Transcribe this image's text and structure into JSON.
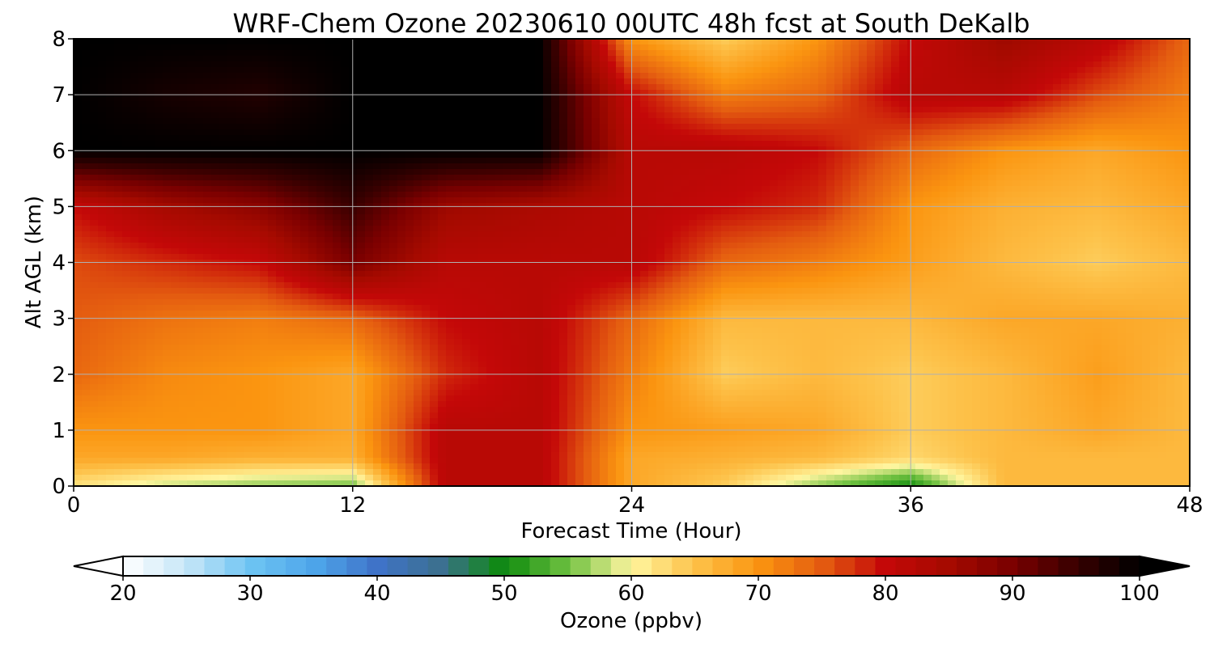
{
  "chart_data": {
    "type": "heatmap",
    "title": "WRF-Chem Ozone  20230610 00UTC 48h fcst at South DeKalb",
    "xlabel": "Forecast Time (Hour)",
    "ylabel": "Alt AGL (km)",
    "xlim": [
      0,
      48
    ],
    "ylim": [
      0,
      8
    ],
    "xticks": [
      0,
      12,
      24,
      36,
      48
    ],
    "yticks": [
      0,
      1,
      2,
      3,
      4,
      5,
      6,
      7,
      8
    ],
    "grid": true,
    "x": [
      0,
      4,
      8,
      12,
      16,
      20,
      24,
      28,
      32,
      36,
      40,
      44,
      48
    ],
    "y": [
      0,
      0.5,
      1,
      2,
      3,
      4,
      5,
      6,
      7,
      8
    ],
    "values": [
      [
        62,
        58,
        56,
        55,
        82,
        82,
        68,
        64,
        56,
        50,
        66,
        66,
        66
      ],
      [
        68,
        68,
        67,
        67,
        82,
        82,
        68,
        67,
        66,
        63,
        66,
        66,
        66
      ],
      [
        70,
        70,
        70,
        68,
        82,
        82,
        70,
        69,
        68,
        64,
        66,
        68,
        66
      ],
      [
        74,
        71,
        70,
        68,
        78,
        82,
        72,
        64,
        66,
        64,
        66,
        69,
        66
      ],
      [
        75,
        73,
        72,
        74,
        80,
        82,
        74,
        66,
        66,
        66,
        68,
        68,
        67
      ],
      [
        76,
        78,
        80,
        90,
        82,
        82,
        82,
        74,
        72,
        69,
        66,
        64,
        66
      ],
      [
        80,
        85,
        88,
        95,
        86,
        84,
        82,
        80,
        78,
        70,
        67,
        66,
        68
      ],
      [
        100,
        100,
        100,
        100,
        100,
        100,
        82,
        82,
        80,
        74,
        70,
        68,
        70
      ],
      [
        100,
        98,
        97,
        100,
        100,
        100,
        80,
        72,
        74,
        82,
        82,
        76,
        72
      ],
      [
        100,
        100,
        100,
        100,
        100,
        100,
        70,
        64,
        70,
        80,
        86,
        82,
        74
      ]
    ],
    "colorbar": {
      "label": "Ozone  (ppbv)",
      "min": 20,
      "max": 100,
      "ticks": [
        20,
        30,
        40,
        50,
        60,
        70,
        80,
        90,
        100
      ],
      "extend": "both",
      "colormap": [
        [
          20,
          "#ffffff"
        ],
        [
          25,
          "#c6e6f7"
        ],
        [
          30,
          "#6ec4f3"
        ],
        [
          35,
          "#4ea6ea"
        ],
        [
          40,
          "#3f73c8"
        ],
        [
          45,
          "#3c708f"
        ],
        [
          50,
          "#0d8a0d"
        ],
        [
          55,
          "#6ec040"
        ],
        [
          60,
          "#fff6a0"
        ],
        [
          65,
          "#fdc24a"
        ],
        [
          70,
          "#fb9510"
        ],
        [
          75,
          "#e45c10"
        ],
        [
          80,
          "#c40808"
        ],
        [
          85,
          "#a50a00"
        ],
        [
          90,
          "#7a0000"
        ],
        [
          95,
          "#380000"
        ],
        [
          100,
          "#000000"
        ]
      ]
    }
  }
}
